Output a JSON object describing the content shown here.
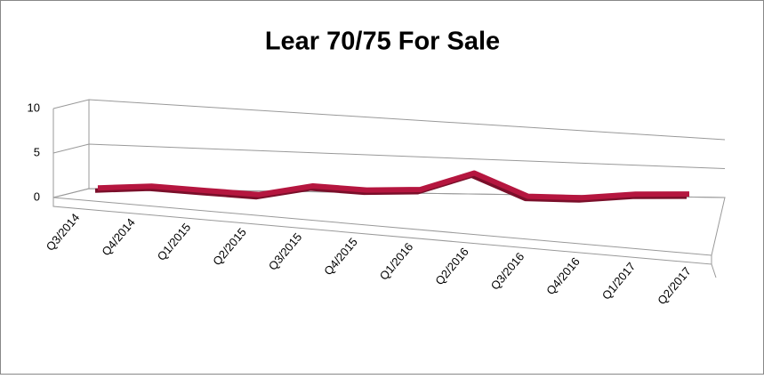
{
  "chart_data": {
    "type": "line",
    "title": "Lear 70/75 For Sale",
    "categories": [
      "Q3/2014",
      "Q4/2014",
      "Q1/2015",
      "Q2/2015",
      "Q3/2015",
      "Q4/2015",
      "Q1/2016",
      "Q2/2016",
      "Q3/2016",
      "Q4/2016",
      "Q1/2017",
      "Q2/2017"
    ],
    "values": [
      0.5,
      0.8,
      0.4,
      0,
      1.2,
      0.8,
      1,
      3.5,
      0.3,
      0.2,
      0.9,
      1.1
    ],
    "color": "#b5163f",
    "ylim": [
      0,
      10
    ],
    "yticks": [
      0,
      5,
      10
    ],
    "grid": true
  }
}
